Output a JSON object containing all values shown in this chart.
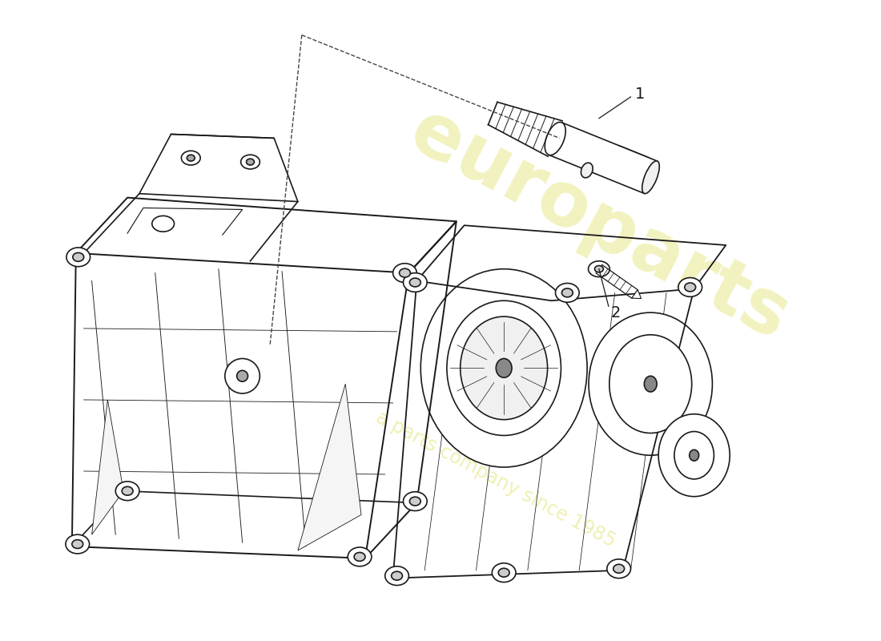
{
  "background_color": "#ffffff",
  "line_color": "#1a1a1a",
  "line_width": 1.2,
  "label_1": "1",
  "label_2": "2",
  "watermark_text": "europarts",
  "watermark_subtext": "a parts company since 1985",
  "watermark_color": "#cccc00",
  "watermark_alpha": 0.25,
  "fig_width": 11.0,
  "fig_height": 8.0,
  "dpi": 100,
  "dash_color": "#444444"
}
